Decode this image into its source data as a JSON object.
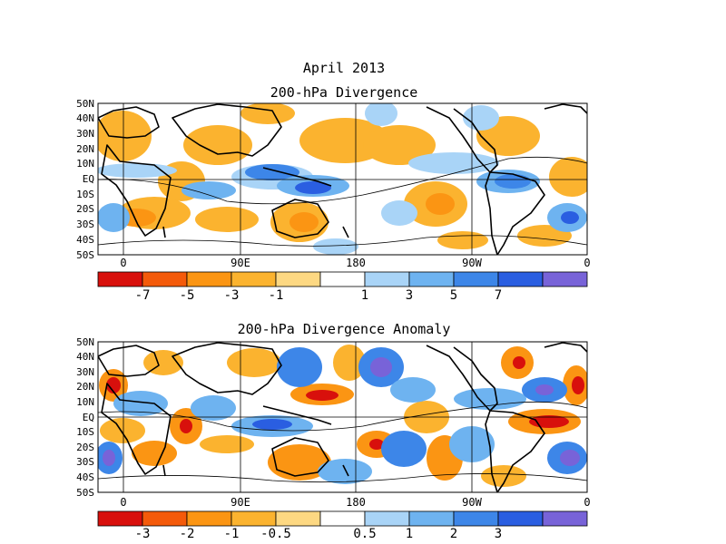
{
  "figure": {
    "title": "April 2013"
  },
  "panels": [
    {
      "id": "divergence",
      "title": "200-hPa Divergence",
      "lat_labels": [
        "50N",
        "40N",
        "30N",
        "20N",
        "10N",
        "EQ",
        "10S",
        "20S",
        "30S",
        "40S",
        "50S"
      ],
      "lon_labels": [
        "0",
        "90E",
        "180",
        "90W",
        "0"
      ],
      "colorbar": {
        "colors": [
          "#d8100c",
          "#f45a0a",
          "#fb9513",
          "#fbb32f",
          "#fdd882",
          "#ffffff",
          "#a9d4f7",
          "#6eb3f0",
          "#3d86e8",
          "#2a5ee1",
          "#7863d8"
        ],
        "labels": [
          "-7",
          "-5",
          "-3",
          "-1",
          "1",
          "3",
          "5",
          "7"
        ]
      }
    },
    {
      "id": "anomaly",
      "title": "200-hPa Divergence Anomaly",
      "lat_labels": [
        "50N",
        "40N",
        "30N",
        "20N",
        "10N",
        "EQ",
        "10S",
        "20S",
        "30S",
        "40S",
        "50S"
      ],
      "lon_labels": [
        "0",
        "90E",
        "180",
        "90W",
        "0"
      ],
      "colorbar": {
        "colors": [
          "#d8100c",
          "#f45a0a",
          "#fb9513",
          "#fbb32f",
          "#fdd882",
          "#ffffff",
          "#a9d4f7",
          "#6eb3f0",
          "#3d86e8",
          "#2a5ee1",
          "#7863d8"
        ],
        "labels": [
          "-3",
          "-2",
          "-1",
          "-0.5",
          "0.5",
          "1",
          "2",
          "3"
        ]
      }
    }
  ]
}
